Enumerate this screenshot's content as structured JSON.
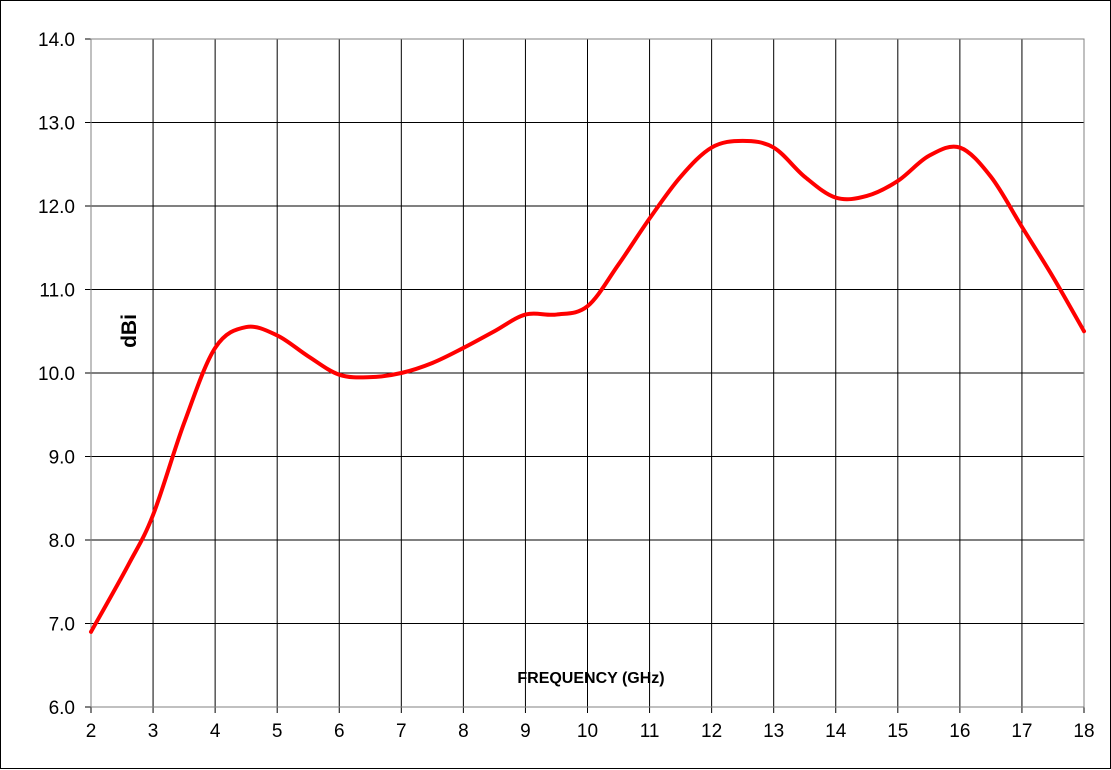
{
  "chart_data": {
    "type": "line",
    "title": "",
    "xlabel": "FREQUENCY (GHz)",
    "ylabel": "dBi",
    "xlim": [
      2,
      18
    ],
    "ylim": [
      6,
      14
    ],
    "x_ticks": [
      "2",
      "3",
      "4",
      "5",
      "6",
      "7",
      "8",
      "9",
      "10",
      "11",
      "12",
      "13",
      "14",
      "15",
      "16",
      "17",
      "18"
    ],
    "y_ticks": [
      "6.0",
      "7.0",
      "8.0",
      "9.0",
      "10.0",
      "11.0",
      "12.0",
      "13.0",
      "14.0"
    ],
    "grid": true,
    "legend": "none",
    "series": [
      {
        "color": "#ff0000",
        "x": [
          2,
          2.6,
          3,
          3.5,
          4,
          4.5,
          5,
          5.5,
          6,
          6.5,
          7,
          7.5,
          8,
          8.5,
          9,
          9.5,
          10,
          10.5,
          11,
          11.5,
          12,
          12.5,
          13,
          13.5,
          14,
          14.5,
          15,
          15.5,
          16,
          16.5,
          17,
          17.5,
          18
        ],
        "y": [
          6.9,
          7.7,
          8.3,
          9.4,
          10.3,
          10.55,
          10.45,
          10.2,
          9.98,
          9.95,
          10.0,
          10.12,
          10.3,
          10.5,
          10.7,
          10.7,
          10.8,
          11.3,
          11.85,
          12.35,
          12.7,
          12.78,
          12.7,
          12.35,
          12.1,
          12.12,
          12.3,
          12.6,
          12.7,
          12.35,
          11.75,
          11.15,
          10.5
        ]
      }
    ]
  }
}
